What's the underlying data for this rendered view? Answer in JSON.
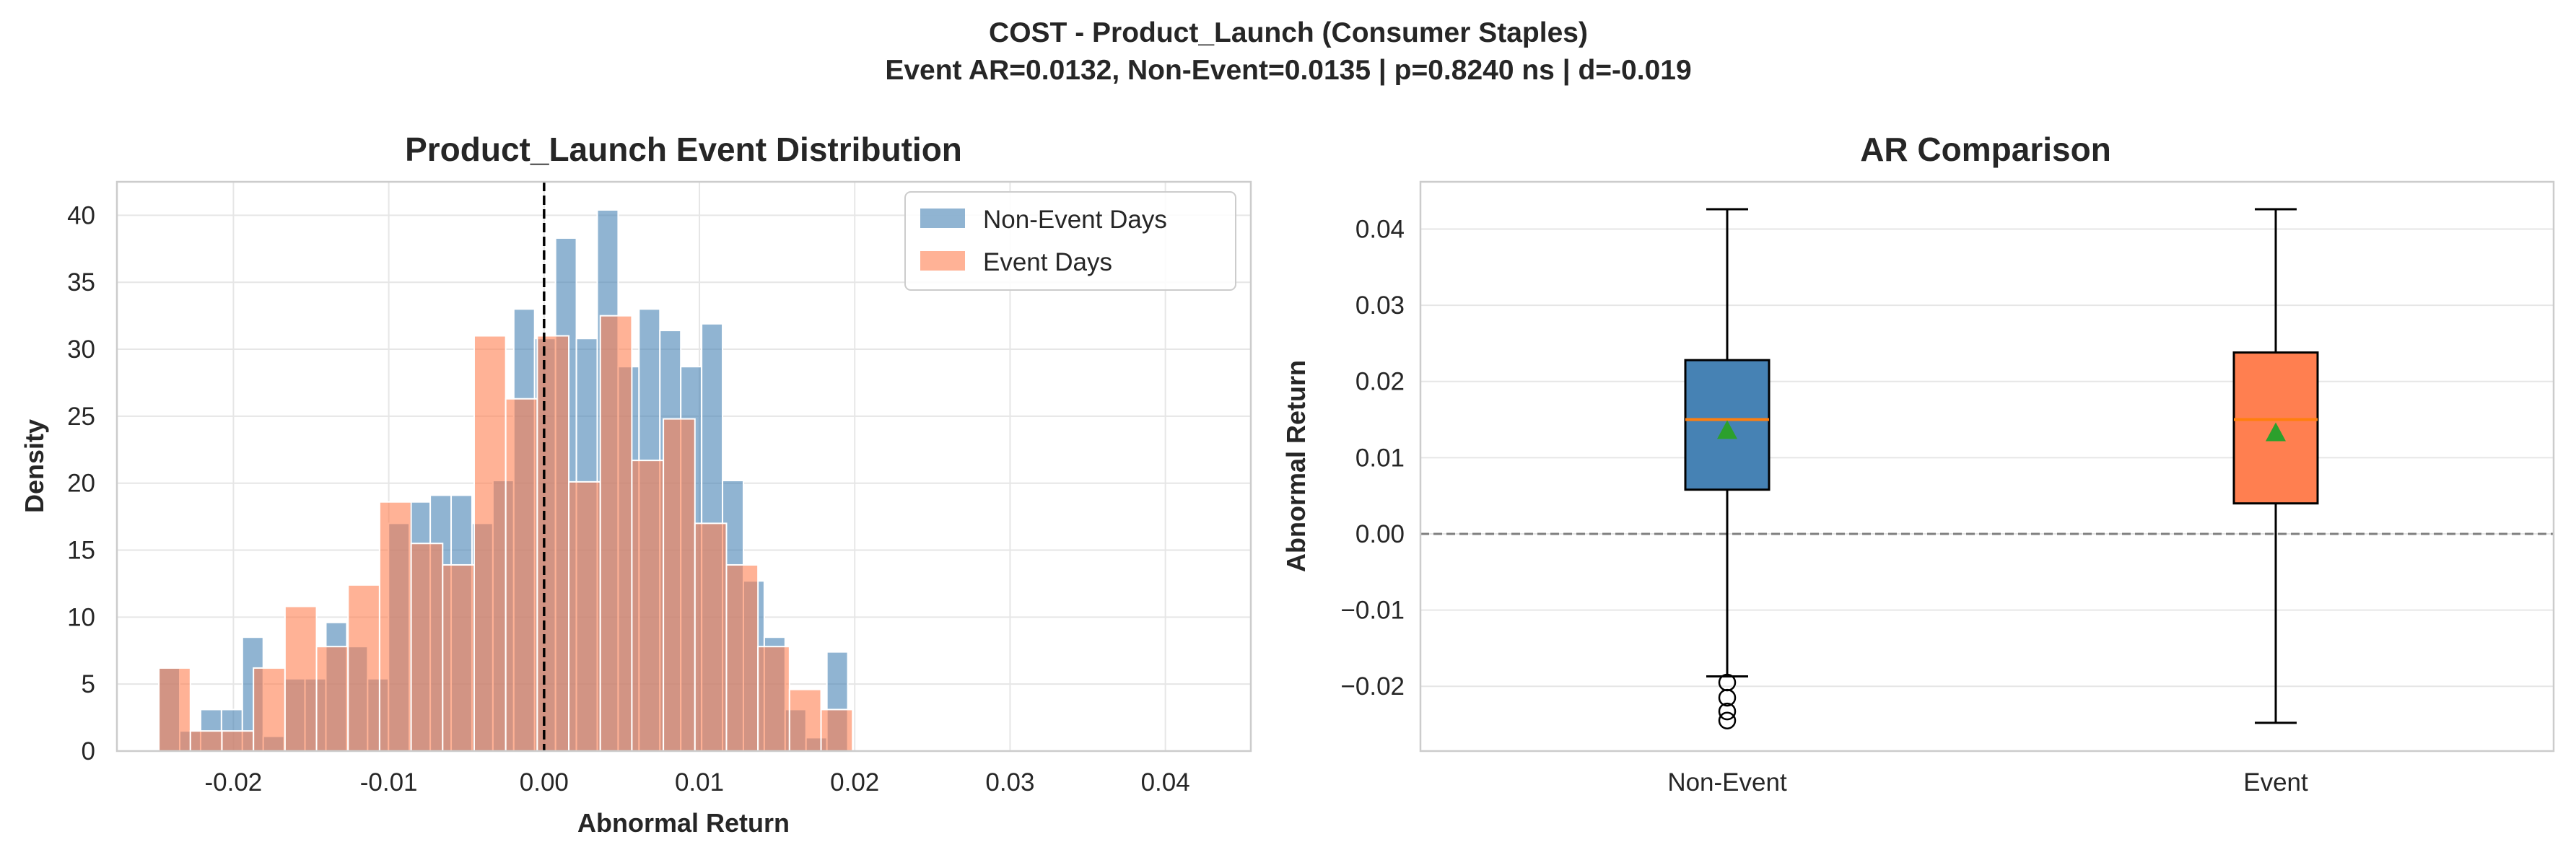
{
  "figure": {
    "title_line1": "COST - Product_Launch (Consumer Staples)",
    "title_line2": "Event AR=0.0132, Non-Event=0.0135 | p=0.8240 ns | d=-0.019"
  },
  "chart_data": [
    {
      "type": "histogram",
      "title": "Product_Launch Event Distribution",
      "xlabel": "Abnormal Return",
      "ylabel": "Density",
      "xlim": [
        -0.0275,
        0.0455
      ],
      "ylim": [
        0,
        42.5
      ],
      "xticks": [
        "-0.02",
        "-0.01",
        "0.00",
        "0.01",
        "0.02",
        "0.03",
        "0.04"
      ],
      "xtick_values": [
        -0.02,
        -0.01,
        0.0,
        0.01,
        0.02,
        0.03,
        0.04
      ],
      "yticks": [
        "0",
        "5",
        "10",
        "15",
        "20",
        "25",
        "30",
        "35",
        "40"
      ],
      "ytick_values": [
        0,
        5,
        10,
        15,
        20,
        25,
        30,
        35,
        40
      ],
      "vline_x": 0.0,
      "legend_position": "top-right",
      "grid": true,
      "series": [
        {
          "name": "Non-Event Days",
          "color": "#4682b4",
          "bin_start": -0.0248,
          "bin_width": 0.001344,
          "values": [
            6.2,
            1.5,
            3.1,
            3.1,
            8.5,
            1.1,
            5.4,
            5.4,
            9.6,
            7.8,
            5.4,
            17.0,
            18.6,
            19.1,
            19.1,
            17.0,
            20.2,
            33.0,
            30.8,
            38.3,
            30.8,
            40.4,
            28.7,
            33.0,
            31.4,
            28.7,
            31.9,
            20.2,
            12.7,
            8.5,
            3.1,
            1.0,
            7.4
          ]
        },
        {
          "name": "Event Days",
          "color": "#ff7f50",
          "bin_start": -0.0248,
          "bin_width": 0.00203,
          "values": [
            6.2,
            1.5,
            1.5,
            6.2,
            10.8,
            7.8,
            12.4,
            18.6,
            15.5,
            13.9,
            31.0,
            26.3,
            31.0,
            20.1,
            32.5,
            21.7,
            24.8,
            17.0,
            13.9,
            7.8,
            4.6,
            3.1
          ]
        }
      ]
    },
    {
      "type": "box",
      "title": "AR Comparison",
      "xlabel": "",
      "ylabel": "Abnormal Return",
      "ylim": [
        -0.0285,
        0.0462
      ],
      "categories": [
        "Non-Event",
        "Event"
      ],
      "yticks": [
        "−0.02",
        "−0.01",
        "0.00",
        "0.01",
        "0.02",
        "0.03",
        "0.04"
      ],
      "ytick_values": [
        -0.02,
        -0.01,
        0.0,
        0.01,
        0.02,
        0.03,
        0.04
      ],
      "hline_y": 0.0,
      "grid": true,
      "boxes": [
        {
          "name": "Non-Event",
          "color": "#4682b4",
          "whisker_low": -0.0187,
          "q1": 0.0058,
          "median": 0.015,
          "q3": 0.0228,
          "whisker_high": 0.0426,
          "mean": 0.0135,
          "outliers": [
            -0.0195,
            -0.0215,
            -0.0233,
            -0.0245
          ]
        },
        {
          "name": "Event",
          "color": "#ff7f50",
          "whisker_low": -0.0248,
          "q1": 0.004,
          "median": 0.015,
          "q3": 0.0238,
          "whisker_high": 0.0426,
          "mean": 0.0132,
          "outliers": []
        }
      ]
    }
  ]
}
